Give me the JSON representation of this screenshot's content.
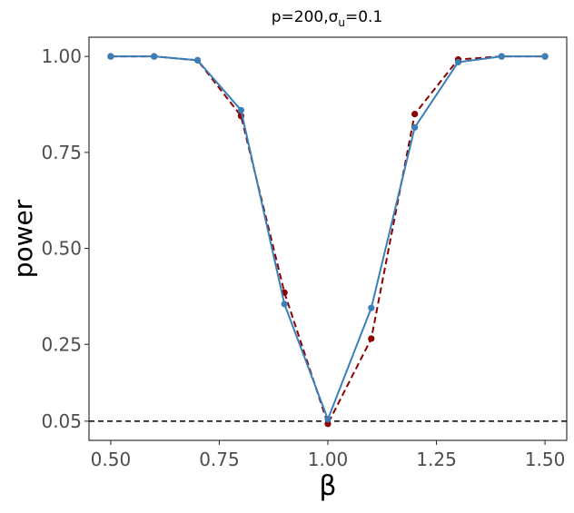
{
  "chart_data": {
    "type": "line",
    "title": {
      "prefix": "p=200,",
      "symbol": "σ",
      "subscript": "u",
      "suffix": "=0.1"
    },
    "xlabel": "β",
    "ylabel": "power",
    "xlim": [
      0.45,
      1.55
    ],
    "ylim": [
      0.0,
      1.05
    ],
    "xticks": [
      0.5,
      0.75,
      1.0,
      1.25,
      1.5
    ],
    "xtick_labels": [
      "0.50",
      "0.75",
      "1.00",
      "1.25",
      "1.50"
    ],
    "yticks": [
      0.05,
      0.25,
      0.5,
      0.75,
      1.0
    ],
    "ytick_labels": [
      "0.05",
      "0.25",
      "0.50",
      "0.75",
      "1.00"
    ],
    "grid": false,
    "reference_line": {
      "y": 0.05,
      "style": "dashed",
      "color": "#000000"
    },
    "series": [
      {
        "color": "#8b0000",
        "line_style": "dashed",
        "x": [
          0.5,
          0.6,
          0.7,
          0.8,
          0.9,
          1.0,
          1.1,
          1.2,
          1.3,
          1.4,
          1.5
        ],
        "y": [
          1.0,
          1.0,
          0.99,
          0.845,
          0.385,
          0.043,
          0.265,
          0.85,
          0.992,
          1.0,
          1.0
        ]
      },
      {
        "color": "#3a7fb8",
        "line_style": "solid",
        "x": [
          0.5,
          0.6,
          0.7,
          0.8,
          0.9,
          1.0,
          1.1,
          1.2,
          1.3,
          1.4,
          1.5
        ],
        "y": [
          1.0,
          1.0,
          0.99,
          0.86,
          0.355,
          0.055,
          0.345,
          0.815,
          0.985,
          1.0,
          1.0
        ]
      }
    ]
  }
}
